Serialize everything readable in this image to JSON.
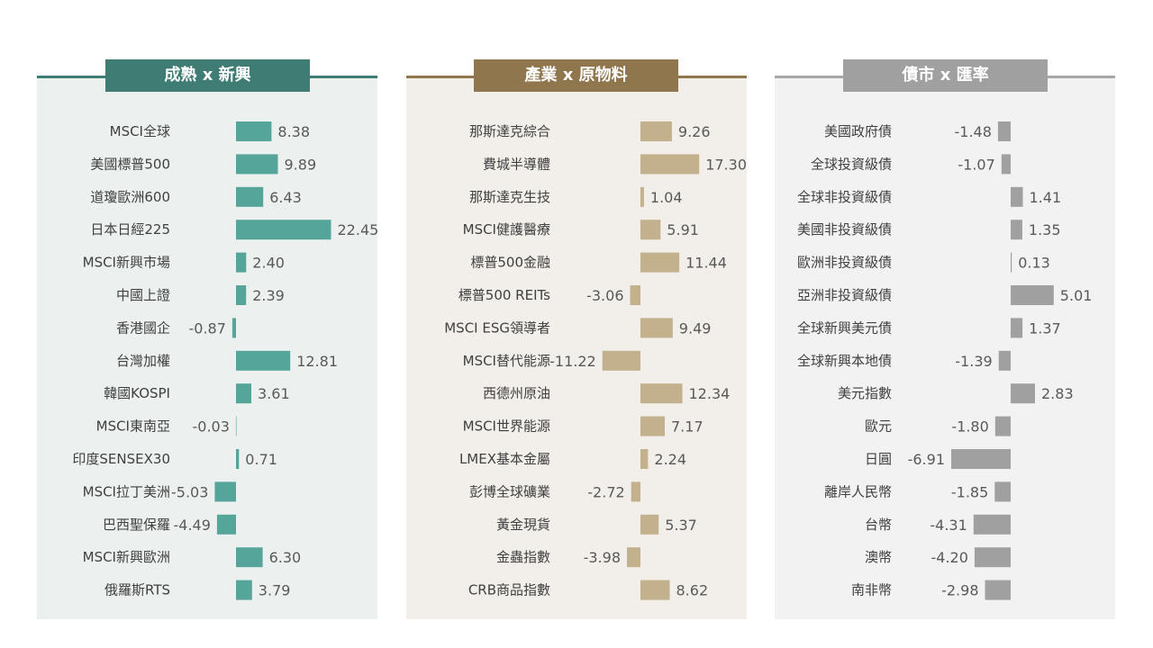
{
  "chart_data": [
    {
      "type": "bar",
      "orientation": "horizontal",
      "title": "成熟 x 新興",
      "colors": {
        "title_bg": "#3f7c74",
        "line": "#3f7c74",
        "panel_bg": "#ecf1f0",
        "bar": "#56a59b"
      },
      "categories": [
        "MSCI全球",
        "美國標普500",
        "道瓊歐洲600",
        "日本日經225",
        "MSCI新興市場",
        "中國上證",
        "香港國企",
        "台灣加權",
        "韓國KOSPI",
        "MSCI東南亞",
        "印度SENSEX30",
        "MSCI拉丁美洲",
        "巴西聖保羅",
        "MSCI新興歐洲",
        "俄羅斯RTS"
      ],
      "values": [
        8.38,
        9.89,
        6.43,
        22.45,
        2.4,
        2.39,
        -0.87,
        12.81,
        3.61,
        -0.03,
        0.71,
        -5.03,
        -4.49,
        6.3,
        3.79
      ],
      "value_labels": [
        "8.38",
        "9.89",
        "6.43",
        "22.45",
        "2.40",
        "2.39",
        "-0.87",
        "12.81",
        "3.61",
        "-0.03",
        "0.71",
        "-5.03",
        "-4.49",
        "6.30",
        "3.79"
      ]
    },
    {
      "type": "bar",
      "orientation": "horizontal",
      "title": "產業 x 原物料",
      "colors": {
        "title_bg": "#8f764d",
        "line": "#8f764d",
        "panel_bg": "#f2efea",
        "bar": "#c3b08c"
      },
      "categories": [
        "那斯達克綜合",
        "費城半導體",
        "那斯達克生技",
        "MSCI健護醫療",
        "標普500金融",
        "標普500 REITs",
        "MSCI ESG領導者",
        "MSCI替代能源",
        "西德州原油",
        "MSCI世界能源",
        "LMEX基本金屬",
        "彭博全球礦業",
        "黃金現貨",
        "金蟲指數",
        "CRB商品指數"
      ],
      "values": [
        9.26,
        17.3,
        1.04,
        5.91,
        11.44,
        -3.06,
        9.49,
        -11.22,
        12.34,
        7.17,
        2.24,
        -2.72,
        5.37,
        -3.98,
        8.62
      ],
      "value_labels": [
        "9.26",
        "17.30",
        "1.04",
        "5.91",
        "11.44",
        "-3.06",
        "9.49",
        "-11.22",
        "12.34",
        "7.17",
        "2.24",
        "-2.72",
        "5.37",
        "-3.98",
        "8.62"
      ]
    },
    {
      "type": "bar",
      "orientation": "horizontal",
      "title": "債市 x 匯率",
      "colors": {
        "title_bg": "#a0a0a0",
        "line": "#a6a6a6",
        "panel_bg": "#f2f2f2",
        "bar": "#a0a0a0"
      },
      "categories": [
        "美國政府債",
        "全球投資級債",
        "全球非投資級債",
        "美國非投資級債",
        "歐洲非投資級債",
        "亞洲非投資級債",
        "全球新興美元債",
        "全球新興本地債",
        "美元指數",
        "歐元",
        "日圓",
        "離岸人民幣",
        "台幣",
        "澳幣",
        "南非幣"
      ],
      "values": [
        -1.48,
        -1.07,
        1.41,
        1.35,
        0.13,
        5.01,
        1.37,
        -1.39,
        2.83,
        -1.8,
        -6.91,
        -1.85,
        -4.31,
        -4.2,
        -2.98
      ],
      "value_labels": [
        "-1.48",
        "-1.07",
        "1.41",
        "1.35",
        "0.13",
        "5.01",
        "1.37",
        "-1.39",
        "2.83",
        "-1.80",
        "-6.91",
        "-1.85",
        "-4.31",
        "-4.20",
        "-2.98"
      ]
    }
  ]
}
